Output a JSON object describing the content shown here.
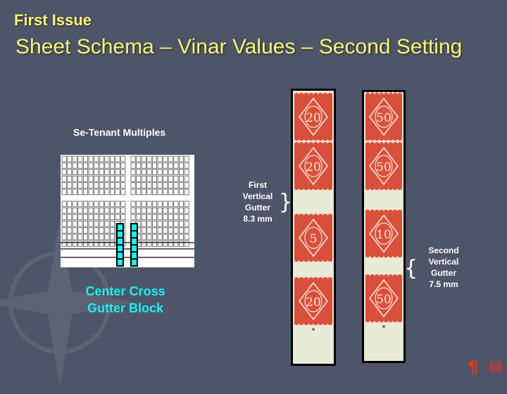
{
  "slide": {
    "small_title": "First Issue",
    "title": "Sheet Schema – Vinar Values – Second Setting"
  },
  "schema": {
    "label": "Se-Tenant Multiples",
    "cross_label_line1": "Center Cross",
    "cross_label_line2": "Gutter Block"
  },
  "first_gutter": {
    "line1": "First",
    "line2": "Vertical",
    "line3": "Gutter",
    "line4": "8.3 mm"
  },
  "second_gutter": {
    "line1": "Second",
    "line2": "Vertical",
    "line3": "Gutter",
    "line4": "7.5 mm"
  },
  "strip_left": {
    "values": [
      "20",
      "20",
      "5",
      "20"
    ]
  },
  "strip_right": {
    "values": [
      "50",
      "50",
      "10",
      "50"
    ]
  },
  "colors": {
    "background": "#4f5568",
    "title": "#f7f77a",
    "accent": "#18f2f2",
    "stamp_red": "#d8503c",
    "gutter_paper": "#e8ecd6"
  },
  "icons": [
    "paragraph-icon",
    "document-icon"
  ]
}
